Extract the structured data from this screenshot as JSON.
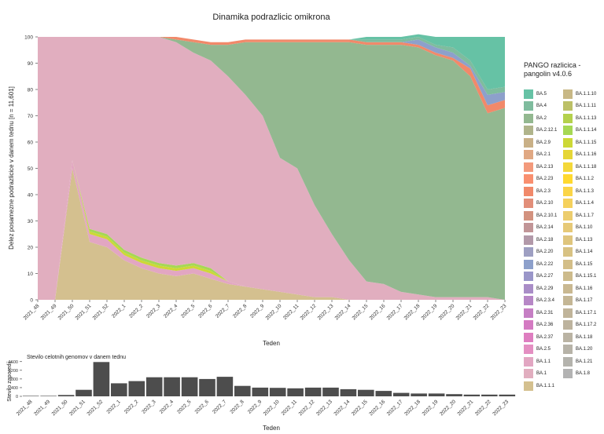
{
  "chart_data": [
    {
      "type": "area",
      "title": "Dinamika podrazlicic omikrona",
      "xlabel": "Teden",
      "ylabel": "Delez posamezne podrazlicice v danem tednu [n = 11,601]",
      "ylim": [
        0,
        100
      ],
      "yticks": [
        0,
        10,
        20,
        30,
        40,
        50,
        60,
        70,
        80,
        90,
        100
      ],
      "stacked": true,
      "grid": false,
      "categories": [
        "2021_48",
        "2021_49",
        "2021_50",
        "2021_51",
        "2021_52",
        "2022_1",
        "2022_2",
        "2022_3",
        "2022_4",
        "2022_5",
        "2022_6",
        "2022_7",
        "2022_8",
        "2022_9",
        "2022_10",
        "2022_11",
        "2022_12",
        "2022_13",
        "2022_14",
        "2022_15",
        "2022_16",
        "2022_17",
        "2022_18",
        "2022_19",
        "2022_20",
        "2022_21",
        "2022_22",
        "2022_23"
      ],
      "series": [
        {
          "name": "BA.1.1.1",
          "values": [
            0,
            0,
            50,
            22,
            20,
            15,
            12,
            10,
            9,
            10,
            8,
            6,
            5,
            4,
            3,
            2,
            1,
            1,
            0,
            0,
            0,
            0,
            0,
            0,
            0,
            0,
            0,
            0
          ]
        },
        {
          "name": "BA.1.1",
          "values": [
            0,
            0,
            3,
            3,
            3,
            2,
            2,
            2,
            2,
            2,
            2,
            1,
            0,
            0,
            0,
            0,
            0,
            0,
            0,
            0,
            0,
            0,
            0,
            0,
            0,
            0,
            0,
            0
          ]
        },
        {
          "name": "BA.1.1.15",
          "values": [
            0,
            0,
            0,
            1,
            1,
            1,
            1,
            1,
            1,
            1,
            1,
            0,
            0,
            0,
            0,
            0,
            0,
            0,
            0,
            0,
            0,
            0,
            0,
            0,
            0,
            0,
            0,
            0
          ]
        },
        {
          "name": "BA.1.1.14",
          "values": [
            0,
            0,
            0,
            1,
            1,
            1,
            1,
            1,
            1,
            1,
            1,
            0,
            0,
            0,
            0,
            0,
            0,
            0,
            0,
            0,
            0,
            0,
            0,
            0,
            0,
            0,
            0,
            0
          ]
        },
        {
          "name": "BA.1",
          "values": [
            100,
            100,
            47,
            73,
            75,
            81,
            84,
            86,
            85,
            80,
            79,
            78,
            73,
            66,
            51,
            48,
            35,
            24,
            15,
            7,
            6,
            3,
            2,
            1,
            1,
            1,
            1,
            0
          ]
        },
        {
          "name": "BA.2",
          "values": [
            0,
            0,
            0,
            0,
            0,
            0,
            0,
            0,
            1,
            4,
            6,
            12,
            20,
            28,
            44,
            48,
            62,
            73,
            83,
            90,
            91,
            94,
            94,
            92,
            90,
            84,
            70,
            73
          ]
        },
        {
          "name": "BA.2.3",
          "values": [
            0,
            0,
            0,
            0,
            0,
            0,
            0,
            0,
            1,
            1,
            1,
            1,
            1,
            1,
            1,
            1,
            1,
            1,
            1,
            1,
            1,
            1,
            1,
            1,
            1,
            3,
            3,
            3
          ]
        },
        {
          "name": "BA.2.22",
          "values": [
            0,
            0,
            0,
            0,
            0,
            0,
            0,
            0,
            0,
            0,
            0,
            0,
            0,
            0,
            0,
            0,
            0,
            0,
            0,
            0,
            0,
            0,
            2,
            2,
            2,
            1,
            4,
            3
          ]
        },
        {
          "name": "BA.4",
          "values": [
            0,
            0,
            0,
            0,
            0,
            0,
            0,
            0,
            0,
            0,
            0,
            0,
            0,
            0,
            0,
            0,
            0,
            0,
            0,
            1,
            1,
            1,
            1,
            1,
            2,
            2,
            2,
            2
          ]
        },
        {
          "name": "BA.5",
          "values": [
            0,
            0,
            0,
            0,
            0,
            0,
            0,
            0,
            0,
            0,
            0,
            0,
            0,
            0,
            0,
            0,
            0,
            0,
            0,
            1,
            1,
            1,
            1,
            3,
            4,
            9,
            20,
            19
          ]
        }
      ],
      "legend": {
        "title": "PANGO razlicica -pangolin v4.0.6",
        "placement": "right",
        "columns": [
          [
            {
              "label": "BA.5",
              "color": "#66c2a5"
            },
            {
              "label": "BA.4",
              "color": "#7fbc9e"
            },
            {
              "label": "BA.2",
              "color": "#93b890"
            },
            {
              "label": "BA.2.12.1",
              "color": "#b0b48b"
            },
            {
              "label": "BA.2.9",
              "color": "#c9b087"
            },
            {
              "label": "BA.2.1",
              "color": "#e0a883"
            },
            {
              "label": "BA.2.13",
              "color": "#f39a7c"
            },
            {
              "label": "BA.2.23",
              "color": "#f98f6f"
            },
            {
              "label": "BA.2.3",
              "color": "#f1896a"
            },
            {
              "label": "BA.2.10",
              "color": "#e28e79"
            },
            {
              "label": "BA.2.10.1",
              "color": "#d3927f"
            },
            {
              "label": "BA.2.14",
              "color": "#c19597"
            },
            {
              "label": "BA.2.18",
              "color": "#b299a9"
            },
            {
              "label": "BA.2.20",
              "color": "#9e9fc2"
            },
            {
              "label": "BA.2.22",
              "color": "#8da0cb"
            },
            {
              "label": "BA.2.27",
              "color": "#9a96c9"
            },
            {
              "label": "BA.2.29",
              "color": "#a98dc7"
            },
            {
              "label": "BA.2.3.4",
              "color": "#b787c6"
            },
            {
              "label": "BA.2.31",
              "color": "#c67fc4"
            },
            {
              "label": "BA.2.36",
              "color": "#d47ac2"
            },
            {
              "label": "BA.2.37",
              "color": "#de7ec0"
            },
            {
              "label": "BA.2.5",
              "color": "#e48fc2"
            },
            {
              "label": "BA.1.1",
              "color": "#e2a6c2"
            },
            {
              "label": "BA.1",
              "color": "#e1aebf"
            },
            {
              "label": "BA.1.1.1",
              "color": "#d4c08f"
            }
          ],
          [
            {
              "label": "BA.1.1.10",
              "color": "#c8b886"
            },
            {
              "label": "BA.1.1.11",
              "color": "#bcc067"
            },
            {
              "label": "BA.1.1.13",
              "color": "#b4d14c"
            },
            {
              "label": "BA.1.1.14",
              "color": "#a6d854"
            },
            {
              "label": "BA.1.1.15",
              "color": "#cdd836"
            },
            {
              "label": "BA.1.1.16",
              "color": "#e5d637"
            },
            {
              "label": "BA.1.1.18",
              "color": "#f4d83a"
            },
            {
              "label": "BA.1.1.2",
              "color": "#ffd92f"
            },
            {
              "label": "BA.1.1.3",
              "color": "#fbd547"
            },
            {
              "label": "BA.1.1.4",
              "color": "#f5d15c"
            },
            {
              "label": "BA.1.1.7",
              "color": "#eccd6e"
            },
            {
              "label": "BA.1.10",
              "color": "#e6c977"
            },
            {
              "label": "BA.1.13",
              "color": "#dfc57d"
            },
            {
              "label": "BA.1.14",
              "color": "#d8c283"
            },
            {
              "label": "BA.1.15",
              "color": "#d3be88"
            },
            {
              "label": "BA.1.15.1",
              "color": "#cdbb8c"
            },
            {
              "label": "BA.1.16",
              "color": "#c9b891"
            },
            {
              "label": "BA.1.17",
              "color": "#c4b695"
            },
            {
              "label": "BA.1.17.1",
              "color": "#c0b49a"
            },
            {
              "label": "BA.1.17.2",
              "color": "#bdb39e"
            },
            {
              "label": "BA.1.18",
              "color": "#bab3a3"
            },
            {
              "label": "BA.1.20",
              "color": "#b7b3a8"
            },
            {
              "label": "BA.1.21",
              "color": "#b4b3ad"
            },
            {
              "label": "BA.1.8",
              "color": "#b3b3b3"
            }
          ]
        ]
      }
    },
    {
      "type": "bar",
      "title": "Stevilo celotnih genomov v danem tednu",
      "xlabel": "Teden",
      "ylabel": "Stevilo zaporedij",
      "ylim": [
        0,
        1700
      ],
      "yticks": [
        0,
        400,
        800,
        1200,
        1600
      ],
      "color": "#4d4d4d",
      "categories": [
        "2021_48",
        "2021_49",
        "2021_50",
        "2021_51",
        "2021_52",
        "2022_1",
        "2022_2",
        "2022_3",
        "2022_4",
        "2022_5",
        "2022_6",
        "2022_7",
        "2022_8",
        "2022_9",
        "2022_10",
        "2022_11",
        "2022_12",
        "2022_13",
        "2022_14",
        "2022_15",
        "2022_16",
        "2022_17",
        "2022_18",
        "2022_19",
        "2022_20",
        "2022_21",
        "2022_22",
        "2022_23"
      ],
      "values": [
        20,
        20,
        60,
        300,
        1580,
        600,
        700,
        880,
        880,
        880,
        800,
        900,
        480,
        400,
        390,
        370,
        400,
        400,
        330,
        300,
        250,
        160,
        130,
        130,
        100,
        80,
        80,
        80
      ]
    }
  ]
}
